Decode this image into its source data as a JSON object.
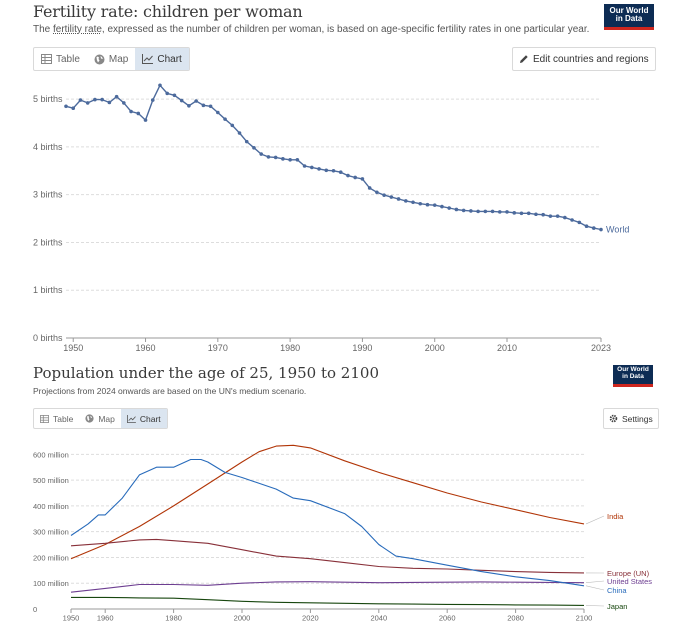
{
  "chart1_header": {
    "title": "Fertility rate: children per woman",
    "subtitle_prefix": "The ",
    "subtitle_link": "fertility rate",
    "subtitle_rest": ", expressed as the number of children per woman, is based on age-specific fertility rates in one particular year.",
    "logo_line1": "Our World",
    "logo_line2": "in Data",
    "tabs": [
      "Table",
      "Map",
      "Chart"
    ],
    "active_tab": "Chart",
    "edit_button": "Edit countries and regions"
  },
  "chart2_header": {
    "title": "Population under the age of 25, 1950 to 2100",
    "subtitle": "Projections from 2024 onwards are based on the UN's medium scenario.",
    "logo_line1": "Our World",
    "logo_line2": "in Data",
    "tabs": [
      "Table",
      "Map",
      "Chart"
    ],
    "active_tab": "Chart",
    "settings_button": "Settings"
  },
  "colors": {
    "world": "#4c6a9c",
    "india": "#b13507",
    "europe": "#883039",
    "united_states": "#6d3e91",
    "china": "#286bbb",
    "japan": "#18470f",
    "grid": "#dddddd",
    "axis_text": "#666666"
  },
  "chart_data": [
    {
      "type": "line",
      "title": "Fertility rate: children per woman",
      "xlabel": "",
      "ylabel": "",
      "x_ticks": [
        1950,
        1960,
        1970,
        1980,
        1990,
        2000,
        2010,
        2023
      ],
      "y_ticks": [
        0,
        1,
        2,
        3,
        4,
        5
      ],
      "y_tick_labels": [
        "0 births",
        "1 births",
        "2 births",
        "3 births",
        "4 births",
        "5 births"
      ],
      "xlim": [
        1949,
        2023
      ],
      "ylim": [
        0,
        5.4
      ],
      "markers": true,
      "series": [
        {
          "name": "World",
          "color_key": "world",
          "x": [
            1949,
            1950,
            1951,
            1952,
            1953,
            1954,
            1955,
            1956,
            1957,
            1958,
            1959,
            1960,
            1961,
            1962,
            1963,
            1964,
            1965,
            1966,
            1967,
            1968,
            1969,
            1970,
            1971,
            1972,
            1973,
            1974,
            1975,
            1976,
            1977,
            1978,
            1979,
            1980,
            1981,
            1982,
            1983,
            1984,
            1985,
            1986,
            1987,
            1988,
            1989,
            1990,
            1991,
            1992,
            1993,
            1994,
            1995,
            1996,
            1997,
            1998,
            1999,
            2000,
            2001,
            2002,
            2003,
            2004,
            2005,
            2006,
            2007,
            2008,
            2009,
            2010,
            2011,
            2012,
            2013,
            2014,
            2015,
            2016,
            2017,
            2018,
            2019,
            2020,
            2021,
            2022,
            2023
          ],
          "y": [
            4.85,
            4.81,
            4.98,
            4.92,
            4.99,
            4.99,
            4.93,
            5.05,
            4.92,
            4.74,
            4.7,
            4.56,
            4.98,
            5.29,
            5.12,
            5.08,
            4.97,
            4.86,
            4.96,
            4.87,
            4.85,
            4.72,
            4.58,
            4.45,
            4.29,
            4.11,
            3.98,
            3.85,
            3.79,
            3.78,
            3.75,
            3.73,
            3.73,
            3.6,
            3.57,
            3.54,
            3.51,
            3.5,
            3.47,
            3.4,
            3.36,
            3.33,
            3.14,
            3.05,
            2.99,
            2.95,
            2.91,
            2.87,
            2.84,
            2.81,
            2.79,
            2.78,
            2.75,
            2.72,
            2.69,
            2.67,
            2.66,
            2.65,
            2.65,
            2.65,
            2.64,
            2.64,
            2.62,
            2.61,
            2.61,
            2.59,
            2.58,
            2.55,
            2.55,
            2.52,
            2.47,
            2.42,
            2.34,
            2.3,
            2.27
          ],
          "end_label": "World"
        }
      ]
    },
    {
      "type": "line",
      "title": "Population under the age of 25, 1950 to 2100",
      "xlabel": "",
      "ylabel": "",
      "x_ticks": [
        1950,
        1960,
        1980,
        2000,
        2020,
        2040,
        2060,
        2080,
        2100
      ],
      "y_ticks": [
        0,
        100,
        200,
        300,
        400,
        500,
        600
      ],
      "y_tick_labels": [
        "0",
        "100 million",
        "200 million",
        "300 million",
        "400 million",
        "500 million",
        "600 million"
      ],
      "xlim": [
        1950,
        2100
      ],
      "ylim": [
        0,
        640
      ],
      "markers": false,
      "series": [
        {
          "name": "India",
          "color_key": "india",
          "x": [
            1950,
            1960,
            1970,
            1980,
            1990,
            2000,
            2005,
            2010,
            2015,
            2020,
            2030,
            2040,
            2050,
            2060,
            2070,
            2080,
            2090,
            2100
          ],
          "y": [
            195,
            250,
            320,
            400,
            485,
            570,
            610,
            632,
            635,
            625,
            575,
            530,
            490,
            450,
            415,
            385,
            355,
            330
          ],
          "end_label": "India"
        },
        {
          "name": "Europe (UN)",
          "color_key": "europe",
          "x": [
            1950,
            1960,
            1970,
            1975,
            1980,
            1990,
            2000,
            2010,
            2020,
            2030,
            2040,
            2050,
            2060,
            2070,
            2080,
            2090,
            2100
          ],
          "y": [
            245,
            255,
            268,
            270,
            265,
            255,
            230,
            205,
            195,
            180,
            165,
            158,
            155,
            150,
            145,
            142,
            140
          ],
          "end_label": "Europe (UN)"
        },
        {
          "name": "United States",
          "color_key": "united_states",
          "x": [
            1950,
            1960,
            1970,
            1980,
            1990,
            2000,
            2010,
            2020,
            2030,
            2040,
            2050,
            2060,
            2070,
            2080,
            2090,
            2100
          ],
          "y": [
            65,
            80,
            95,
            95,
            92,
            100,
            105,
            106,
            104,
            102,
            103,
            104,
            105,
            104,
            103,
            102
          ],
          "end_label": "United States"
        },
        {
          "name": "China",
          "color_key": "china",
          "x": [
            1950,
            1955,
            1958,
            1960,
            1965,
            1970,
            1975,
            1980,
            1985,
            1988,
            1990,
            1995,
            2000,
            2010,
            2015,
            2020,
            2030,
            2035,
            2040,
            2045,
            2050,
            2060,
            2070,
            2080,
            2090,
            2100
          ],
          "y": [
            285,
            330,
            365,
            365,
            430,
            520,
            550,
            550,
            580,
            580,
            570,
            530,
            510,
            465,
            430,
            420,
            370,
            320,
            250,
            205,
            195,
            170,
            145,
            125,
            110,
            90
          ],
          "end_label": "China"
        },
        {
          "name": "Japan",
          "color_key": "japan",
          "x": [
            1950,
            1960,
            1970,
            1980,
            1990,
            2000,
            2010,
            2020,
            2030,
            2040,
            2050,
            2060,
            2070,
            2080,
            2090,
            2100
          ],
          "y": [
            45,
            45,
            43,
            42,
            36,
            30,
            26,
            24,
            22,
            20,
            19,
            18,
            17,
            16,
            15,
            14
          ],
          "end_label": "Japan"
        }
      ]
    }
  ]
}
